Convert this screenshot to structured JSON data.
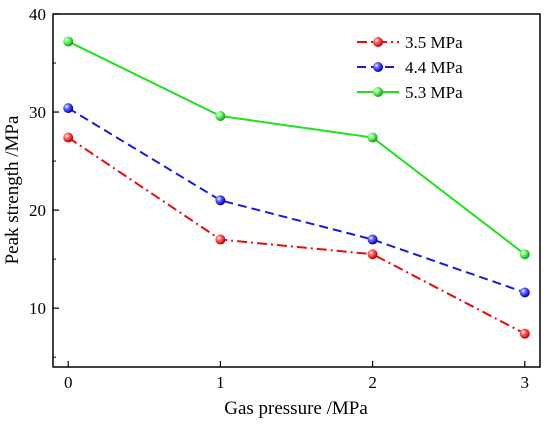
{
  "chart_data": {
    "type": "line",
    "xlabel": "Gas pressure /MPa",
    "ylabel": "Peak strength /MPa",
    "x": [
      0,
      1,
      2,
      3
    ],
    "xlim": [
      -0.1,
      3.1
    ],
    "ylim": [
      4,
      40
    ],
    "xticks": [
      "0",
      "1",
      "2",
      "3"
    ],
    "yticks": [
      "10",
      "20",
      "30",
      "40"
    ],
    "grid": false,
    "legend_position": "top-right",
    "series": [
      {
        "name": "3.5 MPa",
        "values": [
          27.4,
          17.0,
          15.5,
          7.4
        ],
        "color": "#e01010",
        "dash": "dash-dot",
        "marker": "sphere"
      },
      {
        "name": "4.4 MPa",
        "values": [
          30.4,
          21.0,
          17.0,
          11.6
        ],
        "color": "#1a1ad8",
        "dash": "dashed",
        "marker": "sphere"
      },
      {
        "name": "5.3 MPa",
        "values": [
          37.2,
          29.6,
          27.4,
          15.5
        ],
        "color": "#20e020",
        "dash": "solid",
        "marker": "sphere"
      }
    ]
  }
}
